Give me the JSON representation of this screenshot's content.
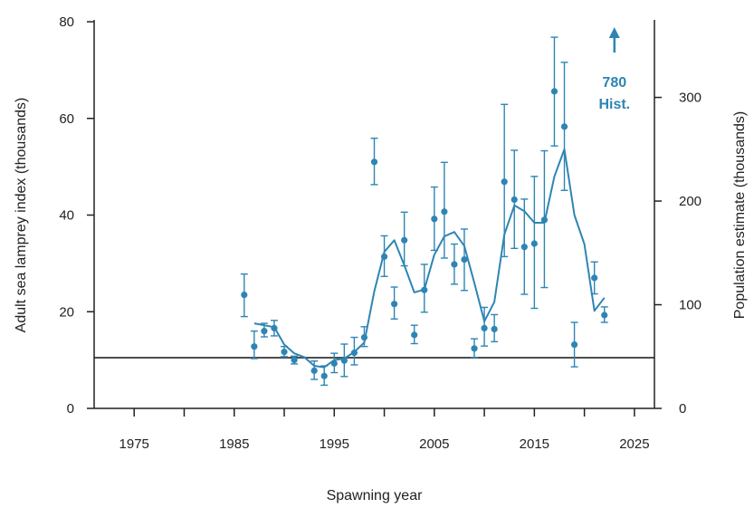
{
  "chart_data": {
    "type": "line",
    "xlabel": "Spawning year",
    "ylabel_left": "Adult sea lamprey index  (thousands)",
    "ylabel_right": "Population estimate  (thousands)",
    "xlim": [
      1971,
      2027
    ],
    "ylim_left": [
      0,
      80
    ],
    "ylim_right": [
      0,
      373
    ],
    "x_ticks": [
      1975,
      1985,
      1995,
      2005,
      2015,
      2025
    ],
    "x_minor_ticks": [
      1980,
      1990,
      2000,
      2010,
      2020
    ],
    "y_left_ticks": [
      0,
      20,
      40,
      60,
      80
    ],
    "y_right_ticks": [
      0,
      100,
      200,
      300
    ],
    "grid": false,
    "legend": "none",
    "colors": {
      "series": "#2e85b3",
      "target_line": "#4d4d4d",
      "axes": "#222222"
    },
    "target_line": {
      "value": 10.5
    },
    "annotation": {
      "line1": "780",
      "line2": "Hist.",
      "arrow": "up-arrow",
      "year": 2023
    },
    "index_points": [
      {
        "year": 1986,
        "value": 23.5,
        "low": 19.0,
        "high": 27.8
      },
      {
        "year": 1987,
        "value": 12.8,
        "low": 10.3,
        "high": 16.0
      },
      {
        "year": 1988,
        "value": 16.0,
        "low": 14.8,
        "high": 17.6
      },
      {
        "year": 1989,
        "value": 16.6,
        "low": 15.0,
        "high": 18.2
      },
      {
        "year": 1990,
        "value": 11.7,
        "low": 10.7,
        "high": 12.8
      },
      {
        "year": 1991,
        "value": 10.0,
        "low": 9.2,
        "high": 10.8
      },
      {
        "year": 1993,
        "value": 7.8,
        "low": 6.0,
        "high": 9.8
      },
      {
        "year": 1994,
        "value": 6.7,
        "low": 4.8,
        "high": 8.8
      },
      {
        "year": 1995,
        "value": 9.3,
        "low": 7.4,
        "high": 11.4
      },
      {
        "year": 1996,
        "value": 9.9,
        "low": 6.6,
        "high": 13.3
      },
      {
        "year": 1997,
        "value": 11.5,
        "low": 9.0,
        "high": 14.7
      },
      {
        "year": 1998,
        "value": 14.7,
        "low": 12.8,
        "high": 16.9
      },
      {
        "year": 1999,
        "value": 51.0,
        "low": 46.3,
        "high": 55.9
      },
      {
        "year": 2000,
        "value": 31.4,
        "low": 27.3,
        "high": 35.7
      },
      {
        "year": 2001,
        "value": 21.6,
        "low": 18.5,
        "high": 25.1
      },
      {
        "year": 2002,
        "value": 34.8,
        "low": 29.5,
        "high": 40.6
      },
      {
        "year": 2003,
        "value": 15.2,
        "low": 13.4,
        "high": 17.2
      },
      {
        "year": 2004,
        "value": 24.5,
        "low": 19.9,
        "high": 29.8
      },
      {
        "year": 2005,
        "value": 39.2,
        "low": 32.7,
        "high": 45.8
      },
      {
        "year": 2006,
        "value": 40.7,
        "low": 31.1,
        "high": 50.9
      },
      {
        "year": 2007,
        "value": 29.8,
        "low": 25.7,
        "high": 34.0
      },
      {
        "year": 2008,
        "value": 30.8,
        "low": 24.4,
        "high": 37.1
      },
      {
        "year": 2009,
        "value": 12.4,
        "low": 10.5,
        "high": 14.4
      },
      {
        "year": 2010,
        "value": 16.6,
        "low": 12.9,
        "high": 20.9
      },
      {
        "year": 2011,
        "value": 16.4,
        "low": 13.8,
        "high": 19.4
      },
      {
        "year": 2012,
        "value": 46.9,
        "low": 31.4,
        "high": 62.9
      },
      {
        "year": 2013,
        "value": 43.2,
        "low": 33.1,
        "high": 53.4
      },
      {
        "year": 2014,
        "value": 33.4,
        "low": 23.6,
        "high": 43.3
      },
      {
        "year": 2015,
        "value": 34.1,
        "low": 20.7,
        "high": 48.0
      },
      {
        "year": 2016,
        "value": 39.0,
        "low": 25.0,
        "high": 53.3
      },
      {
        "year": 2017,
        "value": 65.6,
        "low": 54.3,
        "high": 76.8
      },
      {
        "year": 2018,
        "value": 58.3,
        "low": 45.1,
        "high": 71.6
      },
      {
        "year": 2019,
        "value": 13.2,
        "low": 8.6,
        "high": 17.8
      },
      {
        "year": 2021,
        "value": 27.0,
        "low": 23.7,
        "high": 30.3
      },
      {
        "year": 2022,
        "value": 19.3,
        "low": 17.8,
        "high": 21.0
      }
    ],
    "population_line": [
      {
        "year": 1987,
        "value": 17.6
      },
      {
        "year": 1988,
        "value": 17.2
      },
      {
        "year": 1989,
        "value": 16.8
      },
      {
        "year": 1990,
        "value": 13.2
      },
      {
        "year": 1991,
        "value": 11.4
      },
      {
        "year": 1992,
        "value": 10.6
      },
      {
        "year": 1993,
        "value": 8.8
      },
      {
        "year": 1994,
        "value": 8.5
      },
      {
        "year": 1995,
        "value": 10.0
      },
      {
        "year": 1996,
        "value": 10.3
      },
      {
        "year": 1997,
        "value": 11.7
      },
      {
        "year": 1998,
        "value": 13.6
      },
      {
        "year": 1999,
        "value": 24.2
      },
      {
        "year": 2000,
        "value": 32.4
      },
      {
        "year": 2001,
        "value": 34.8
      },
      {
        "year": 2002,
        "value": 29.6
      },
      {
        "year": 2003,
        "value": 24.0
      },
      {
        "year": 2004,
        "value": 24.6
      },
      {
        "year": 2005,
        "value": 31.8
      },
      {
        "year": 2006,
        "value": 35.6
      },
      {
        "year": 2007,
        "value": 36.5
      },
      {
        "year": 2008,
        "value": 33.6
      },
      {
        "year": 2009,
        "value": 26.0
      },
      {
        "year": 2010,
        "value": 18.0
      },
      {
        "year": 2011,
        "value": 22.0
      },
      {
        "year": 2012,
        "value": 36.0
      },
      {
        "year": 2013,
        "value": 42.0
      },
      {
        "year": 2014,
        "value": 40.8
      },
      {
        "year": 2015,
        "value": 38.4
      },
      {
        "year": 2016,
        "value": 38.4
      },
      {
        "year": 2017,
        "value": 48.0
      },
      {
        "year": 2018,
        "value": 53.6
      },
      {
        "year": 2019,
        "value": 40.0
      },
      {
        "year": 2020,
        "value": 34.0
      },
      {
        "year": 2021,
        "value": 20.2
      },
      {
        "year": 2022,
        "value": 22.9
      }
    ]
  }
}
